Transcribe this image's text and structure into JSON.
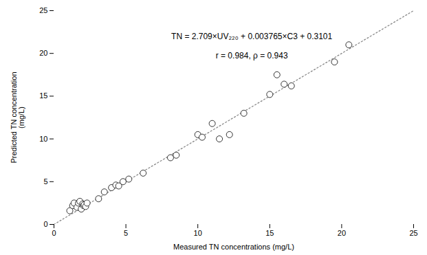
{
  "chart_data": {
    "type": "scatter",
    "xlabel": "Measured TN concentrations (mg/L)",
    "ylabel": "Predicted TN concentration\n(mg/L)",
    "xlim": [
      0,
      25
    ],
    "ylim": [
      0,
      25
    ],
    "xticks": [
      0,
      5,
      10,
      15,
      20,
      25
    ],
    "yticks": [
      0,
      5,
      10,
      15,
      20,
      25
    ],
    "grid": false,
    "series": [
      {
        "type": "line",
        "x": [
          0,
          25
        ],
        "values": [
          0,
          25
        ],
        "color": "#888888",
        "line_style": "dotted"
      },
      {
        "type": "scatter",
        "x": [
          1.1,
          1.3,
          1.4,
          1.6,
          1.7,
          1.8,
          1.9,
          2.0,
          2.05,
          2.1,
          2.2,
          2.3,
          3.1,
          3.5,
          4.0,
          4.3,
          4.5,
          4.8,
          5.2,
          6.2,
          8.1,
          8.5,
          10.0,
          10.3,
          11.0,
          11.5,
          12.2,
          13.2,
          15.0,
          15.5,
          16.0,
          16.5,
          19.5,
          20.5
        ],
        "values": [
          1.6,
          2.2,
          2.5,
          2.0,
          2.5,
          2.7,
          1.8,
          2.4,
          2.2,
          2.3,
          2.1,
          2.5,
          3.0,
          3.8,
          4.3,
          4.6,
          4.5,
          5.0,
          5.3,
          6.0,
          7.8,
          8.1,
          10.5,
          10.2,
          11.8,
          10.0,
          10.5,
          13.0,
          15.2,
          17.5,
          16.4,
          16.2,
          19.0,
          21.0
        ],
        "color": "#333333",
        "marker": "open_circle"
      }
    ],
    "annotations": [
      "TN = 2.709×UV₂₂₀ + 0.003765×C3 + 0.3101",
      "r = 0.984, ρ = 0.943"
    ]
  }
}
